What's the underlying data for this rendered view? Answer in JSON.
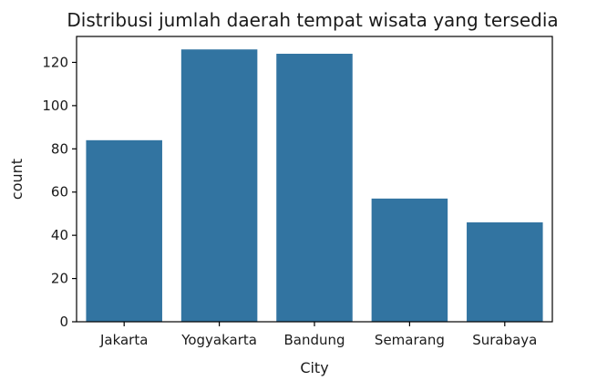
{
  "chart_data": {
    "type": "bar",
    "title": "Distribusi jumlah daerah tempat wisata yang tersedia",
    "xlabel": "City",
    "ylabel": "count",
    "categories": [
      "Jakarta",
      "Yogyakarta",
      "Bandung",
      "Semarang",
      "Surabaya"
    ],
    "values": [
      84,
      126,
      124,
      57,
      46
    ],
    "ylim": [
      0,
      132
    ],
    "yticks": [
      0,
      20,
      40,
      60,
      80,
      100,
      120
    ],
    "grid": false,
    "bar_color": "#3274a1"
  }
}
